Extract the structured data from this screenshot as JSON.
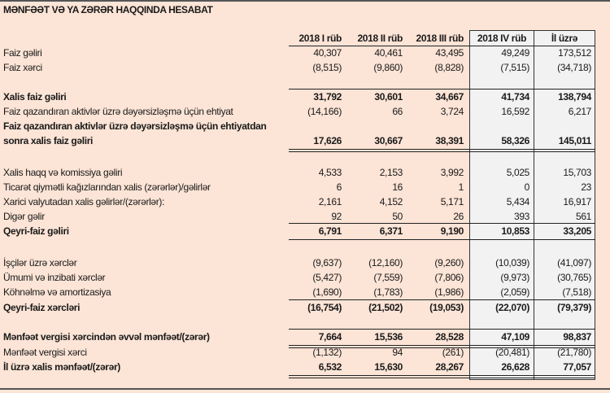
{
  "title": "MƏNFƏƏT VƏ YA ZƏRƏR HAQQINDA HESABAT",
  "colors": {
    "background": "#fce4d6",
    "highlight_columns": "#f2f2f2"
  },
  "columns": [
    "2018 I rüb",
    "2018 II rüb",
    "2018 III rüb",
    "2018 IV rüb",
    "İl üzrə"
  ],
  "rows": [
    {
      "label": "Faiz gəliri",
      "values": [
        "40,307",
        "40,461",
        "43,495",
        "49,249",
        "173,512"
      ],
      "bold": false
    },
    {
      "label": "Faiz xərci",
      "values": [
        "(8,515)",
        "(9,860)",
        "(8,828)",
        "(7,515)",
        "(34,718)"
      ],
      "bold": false
    },
    {
      "label": "Xalis faiz gəliri",
      "values": [
        "31,792",
        "30,601",
        "34,667",
        "41,734",
        "138,794"
      ],
      "bold": true
    },
    {
      "label": "Faiz qazandıran aktivlər üzrə dəyərsizləşmə üçün ehtiyat",
      "values": [
        "(14,166)",
        "66",
        "3,724",
        "16,592",
        "6,217"
      ],
      "bold": false
    },
    {
      "label": "Faiz qazandıran aktivlər üzrə dəyərsizləşmə üçün ehtiyatdan",
      "label2": "sonra xalis faiz gəliri",
      "values": [
        "17,626",
        "30,667",
        "38,391",
        "58,326",
        "145,011"
      ],
      "bold": true
    },
    {
      "label": "Xalis haqq və komissiya gəliri",
      "values": [
        "4,533",
        "2,153",
        "3,992",
        "5,025",
        "15,703"
      ],
      "bold": false
    },
    {
      "label": "Ticarət qiymətli kağızlarından xalis (zərərlər)/gəlirlər",
      "values": [
        "6",
        "16",
        "1",
        "0",
        "23"
      ],
      "bold": false
    },
    {
      "label": "Xarici valyutadan xalis gəlirlər/(zərərlər):",
      "values": [
        "2,161",
        "4,152",
        "5,171",
        "5,434",
        "16,917"
      ],
      "bold": false
    },
    {
      "label": "Digər gəlir",
      "values": [
        "92",
        "50",
        "26",
        "393",
        "561"
      ],
      "bold": false
    },
    {
      "label": "Qeyri-faiz gəliri",
      "values": [
        "6,791",
        "6,371",
        "9,190",
        "10,853",
        "33,205"
      ],
      "bold": true
    },
    {
      "label": "İşçilər üzrə xərclər",
      "values": [
        "(9,637)",
        "(12,160)",
        "(9,260)",
        "(10,039)",
        "(41,097)"
      ],
      "bold": false
    },
    {
      "label": "Ümumi və inzibati xərclər",
      "values": [
        "(5,427)",
        "(7,559)",
        "(7,806)",
        "(9,973)",
        "(30,765)"
      ],
      "bold": false
    },
    {
      "label": "Köhnəlmə və amortizasiya",
      "values": [
        "(1,690)",
        "(1,783)",
        "(1,986)",
        "(2,059)",
        "(7,518)"
      ],
      "bold": false
    },
    {
      "label": "Qeyri-faiz xərcləri",
      "values": [
        "(16,754)",
        "(21,502)",
        "(19,053)",
        "(22,070)",
        "(79,379)"
      ],
      "bold": true
    },
    {
      "label": "Mənfəət vergisi xərcindən əvvəl mənfəət/(zərər)",
      "values": [
        "7,664",
        "15,536",
        "28,528",
        "47,109",
        "98,837"
      ],
      "bold": true
    },
    {
      "label": "Mənfəət vergisi xərci",
      "values": [
        "(1,132)",
        "94",
        "(261)",
        "(20,481)",
        "(21,780)"
      ],
      "bold": false
    },
    {
      "label": "İl üzrə xalis mənfəət/(zərər)",
      "values": [
        "6,532",
        "15,630",
        "28,267",
        "26,628",
        "77,057"
      ],
      "bold": true
    }
  ]
}
